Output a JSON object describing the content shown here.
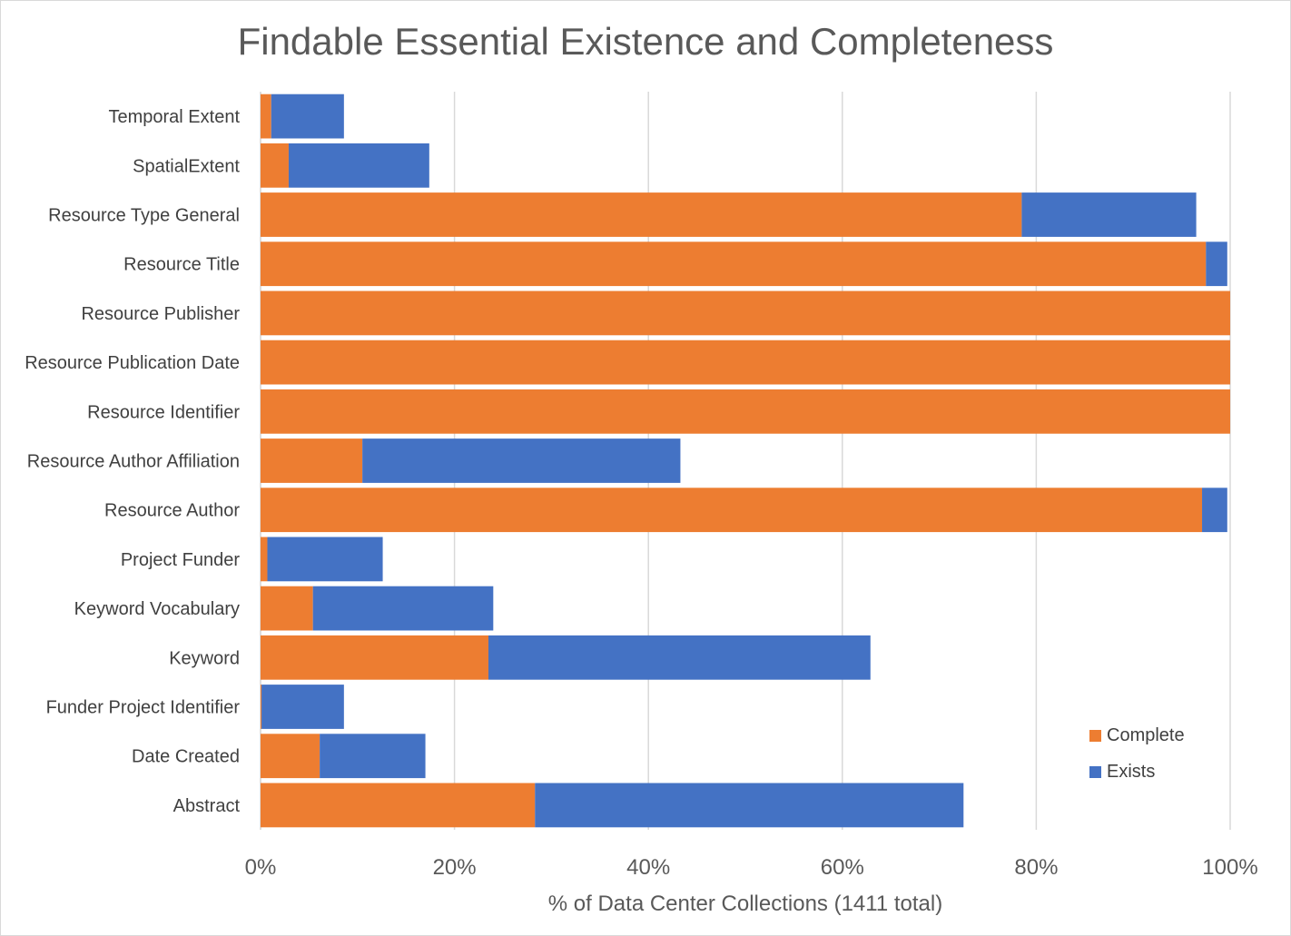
{
  "chart_data": {
    "type": "bar",
    "orientation": "horizontal",
    "stacked": true,
    "title": "Findable Essential Existence and Completeness",
    "xlabel": "% of Data Center Collections (1411 total)",
    "ylabel": "",
    "xlim": [
      0,
      100
    ],
    "x_ticks": [
      "0%",
      "20%",
      "40%",
      "60%",
      "80%",
      "100%"
    ],
    "grid": "vertical",
    "legend_position": "bottom-right",
    "categories": [
      "Temporal Extent",
      "SpatialExtent",
      "Resource Type General",
      "Resource Title",
      "Resource Publisher",
      "Resource Publication Date",
      "Resource Identifier",
      "Resource Author Affiliation",
      "Resource Author",
      "Project Funder",
      "Keyword Vocabulary",
      "Keyword",
      "Funder Project Identifier",
      "Date Created",
      "Abstract"
    ],
    "series": [
      {
        "name": "Complete",
        "color": "#ED7D31",
        "values": [
          1.1,
          2.9,
          78.5,
          97.5,
          100,
          100,
          100,
          10.5,
          97.1,
          0.7,
          5.4,
          23.5,
          0.1,
          6.1,
          28.3
        ]
      },
      {
        "name": "Exists",
        "color": "#4472C4",
        "values": [
          7.5,
          14.5,
          18.0,
          2.2,
          0,
          0,
          0,
          32.8,
          2.6,
          11.9,
          18.6,
          39.4,
          8.5,
          10.9,
          44.2
        ]
      }
    ]
  }
}
